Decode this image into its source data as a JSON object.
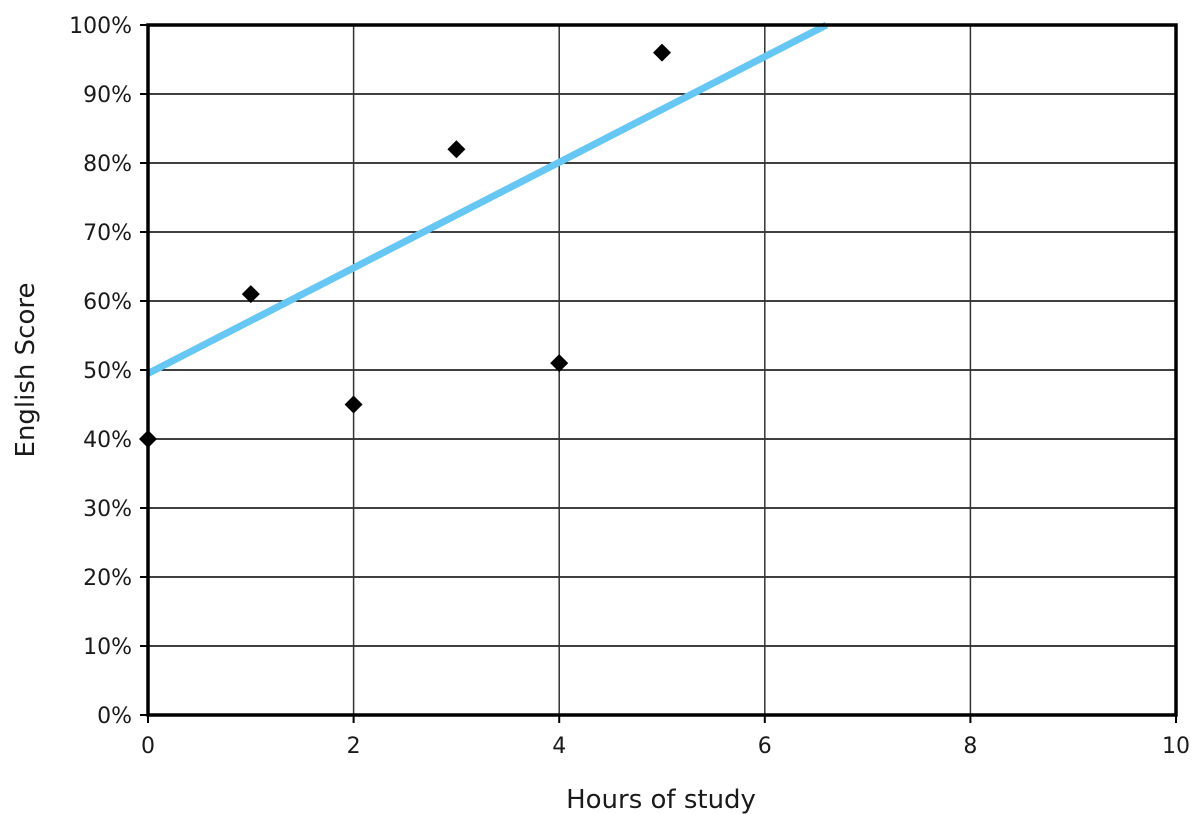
{
  "chart_data": {
    "type": "scatter",
    "title": "",
    "xlabel": "Hours of study",
    "ylabel": "English Score",
    "xlim": [
      0,
      10
    ],
    "ylim": [
      0,
      100
    ],
    "x_ticks": [
      0,
      2,
      4,
      6,
      8,
      10
    ],
    "y_ticks": [
      0,
      10,
      20,
      30,
      40,
      50,
      60,
      70,
      80,
      90,
      100
    ],
    "y_tick_suffix": "%",
    "grid": true,
    "legend": "none",
    "series": [
      {
        "type": "scatter",
        "marker": "diamond",
        "color": "#000000",
        "x": [
          0,
          1,
          2,
          3,
          4,
          5
        ],
        "y": [
          40,
          61,
          45,
          82,
          51,
          96
        ]
      },
      {
        "type": "line",
        "role": "trendline",
        "color": "#66c6f4",
        "x": [
          0,
          6.6
        ],
        "y": [
          49.5,
          100
        ]
      }
    ]
  }
}
